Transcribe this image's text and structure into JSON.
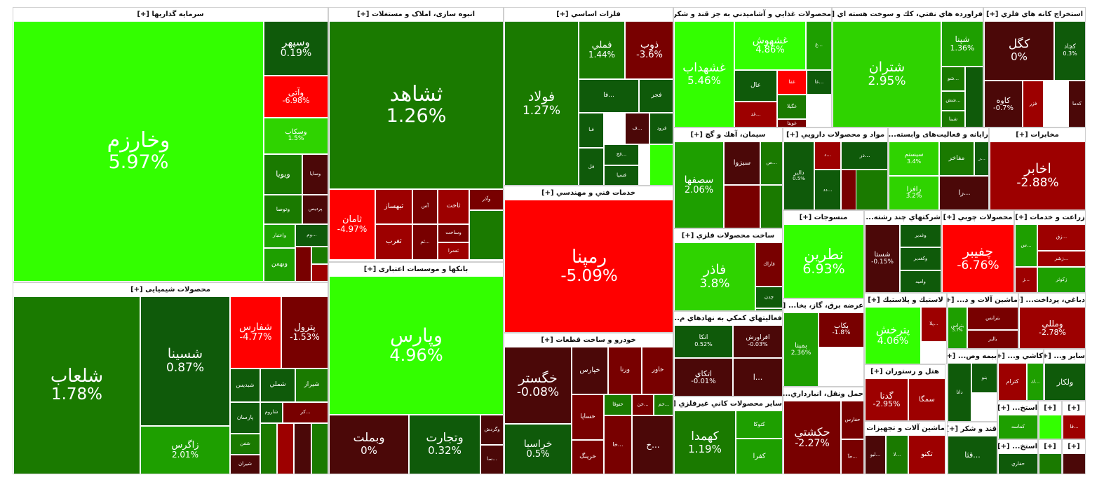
{
  "colors": {
    "up_max": "#33ff00",
    "up_strong": "#2fd300",
    "up_mid": "#1e9f00",
    "up_low": "#1a7a00",
    "flat_green": "#0f5a0a",
    "flat_red": "#4b0808",
    "down_low": "#780000",
    "down_mid": "#9d0000",
    "down_strong": "#c40000",
    "down_max": "#ff0000"
  },
  "sectors": [
    {
      "title": "سرمایه گذاریها [+]",
      "tiles": [
        {
          "symbol": "وخارزم",
          "pct": "5.97%",
          "color": "up_max"
        },
        {
          "symbol": "وسپهر",
          "pct": "0.19%",
          "color": "flat_green"
        },
        {
          "symbol": "وآتی",
          "pct": "-6.98%",
          "color": "down_max"
        },
        {
          "symbol": "وسکاب",
          "pct": "1.5%",
          "color": "up_strong"
        },
        {
          "symbol": "وسایا",
          "color": "flat_red"
        },
        {
          "symbol": "ویویا",
          "color": "up_low"
        },
        {
          "symbol": "پردیس",
          "color": "flat_red"
        },
        {
          "symbol": "وتوصا",
          "color": "up_low"
        },
        {
          "symbol": "وم...",
          "color": "flat_green"
        },
        {
          "symbol": "واعتبار",
          "color": "up_mid"
        },
        {
          "symbol": "وبهمن",
          "color": "up_mid"
        },
        {
          "symbol": "",
          "color": "down_low"
        },
        {
          "symbol": "",
          "color": "up_low"
        },
        {
          "symbol": "",
          "color": "down_mid"
        }
      ]
    },
    {
      "title": "محصولات شیمیایی [+]",
      "tiles": [
        {
          "symbol": "شلعاب",
          "pct": "1.78%",
          "color": "up_low"
        },
        {
          "symbol": "شسینا",
          "pct": "0.87%",
          "color": "flat_green"
        },
        {
          "symbol": "زاگرس",
          "pct": "2.01%",
          "color": "up_mid"
        },
        {
          "symbol": "شفارس",
          "pct": "-4.77%",
          "color": "down_max"
        },
        {
          "symbol": "پترول",
          "pct": "-1.53%",
          "color": "down_low"
        },
        {
          "symbol": "شیراز",
          "color": "up_low"
        },
        {
          "symbol": "شملي",
          "color": "flat_green"
        },
        {
          "symbol": "شبدیس",
          "color": "flat_green"
        },
        {
          "symbol": "شاروم",
          "color": "flat_green"
        },
        {
          "symbol": "کر...",
          "color": "down_low"
        },
        {
          "symbol": "پارسان",
          "color": "flat_green"
        },
        {
          "symbol": "شفن",
          "color": "up_low"
        },
        {
          "symbol": "شیران",
          "color": "flat_red"
        },
        {
          "symbol": "",
          "color": "up_low"
        },
        {
          "symbol": "",
          "color": "down_mid"
        },
        {
          "symbol": "",
          "color": "flat_red"
        },
        {
          "symbol": "",
          "color": "up_low"
        }
      ]
    },
    {
      "title": "انبوه سازی، املاک و مستغلات [+]",
      "tiles": [
        {
          "symbol": "ثشاهد",
          "pct": "1.26%",
          "color": "up_low"
        },
        {
          "symbol": "ثامان",
          "pct": "-4.97%",
          "color": "down_max"
        },
        {
          "symbol": "ثبهساز",
          "color": "down_mid"
        },
        {
          "symbol": "آس",
          "color": "down_low"
        },
        {
          "symbol": "ثاخت",
          "color": "down_mid"
        },
        {
          "symbol": "وآذر",
          "color": "down_low"
        },
        {
          "symbol": "ثغرب",
          "color": "down_mid"
        },
        {
          "symbol": "ثم...",
          "color": "down_low"
        },
        {
          "symbol": "وساخت",
          "color": "down_low"
        },
        {
          "symbol": "ثعمرا",
          "color": "down_mid"
        },
        {
          "symbol": "",
          "color": "up_low"
        }
      ]
    },
    {
      "title": "بانکها و موسسات اعتباری [+]",
      "tiles": [
        {
          "symbol": "وپارس",
          "pct": "4.96%",
          "color": "up_max"
        },
        {
          "symbol": "وبملت",
          "pct": "0%",
          "color": "flat_red"
        },
        {
          "symbol": "وتجارت",
          "pct": "0.32%",
          "color": "flat_green"
        },
        {
          "symbol": "وگردش",
          "color": "flat_red"
        },
        {
          "symbol": "سا...",
          "color": "flat_red"
        }
      ]
    },
    {
      "title": "فلزات اساسي [+]",
      "tiles": [
        {
          "symbol": "فولاد",
          "pct": "1.27%",
          "color": "up_low"
        },
        {
          "symbol": "فملي",
          "pct": "1.44%",
          "color": "up_low"
        },
        {
          "symbol": "ذوب",
          "pct": "-3.6%",
          "color": "down_low"
        },
        {
          "symbol": "فجر",
          "color": "flat_green"
        },
        {
          "symbol": "فا...",
          "color": "flat_green"
        },
        {
          "symbol": "ف...",
          "color": "flat_red"
        },
        {
          "symbol": "فرود",
          "color": "flat_green"
        },
        {
          "symbol": "فبا",
          "color": "flat_green"
        },
        {
          "symbol": "فخ...",
          "color": "flat_green"
        },
        {
          "symbol": "فسپا",
          "color": "flat_green"
        },
        {
          "symbol": "فل",
          "color": "flat_green"
        },
        {
          "symbol": "",
          "color": "up_max"
        }
      ]
    },
    {
      "title": "خدمات فني و مهندسي [+]",
      "tiles": [
        {
          "symbol": "رمپنا",
          "pct": "-5.09%",
          "color": "down_max"
        }
      ]
    },
    {
      "title": "خودرو و ساخت قطعات [+]",
      "tiles": [
        {
          "symbol": "خگستر",
          "pct": "-0.08%",
          "color": "flat_red"
        },
        {
          "symbol": "خراسیا",
          "pct": "0.5%",
          "color": "flat_green"
        },
        {
          "symbol": "خپارس",
          "color": "flat_red"
        },
        {
          "symbol": "ورنا",
          "color": "down_low"
        },
        {
          "symbol": "خاور",
          "color": "down_low"
        },
        {
          "symbol": "خساپا",
          "color": "down_low"
        },
        {
          "symbol": "ختوقا",
          "color": "up_low"
        },
        {
          "symbol": "خن...",
          "color": "down_low"
        },
        {
          "symbol": "خم...",
          "color": "up_low"
        },
        {
          "symbol": "خرینگ",
          "color": "down_low"
        },
        {
          "symbol": "خا...",
          "color": "down_low"
        },
        {
          "symbol": "خ...",
          "color": "flat_red"
        }
      ]
    },
    {
      "title": "محصولات غذايي و آشاميدني به جز قند و شکر [+]",
      "tiles": [
        {
          "symbol": "غشهداب",
          "pct": "5.46%",
          "color": "up_max"
        },
        {
          "symbol": "غشهوش",
          "pct": "4.86%",
          "color": "up_max"
        },
        {
          "symbol": "غ...",
          "color": "up_mid"
        },
        {
          "symbol": "غفا",
          "color": "down_max"
        },
        {
          "symbol": "غا...",
          "color": "flat_green"
        },
        {
          "symbol": "عال",
          "color": "flat_green"
        },
        {
          "symbol": "غگیلا",
          "color": "up_low"
        },
        {
          "symbol": "غد...",
          "color": "down_mid"
        },
        {
          "symbol": "غویتا",
          "color": "down_low"
        }
      ]
    },
    {
      "title": "فراورده هاي نفتي، كك و سوخت هسته اي [+]",
      "tiles": [
        {
          "symbol": "شتران",
          "pct": "2.95%",
          "color": "up_strong"
        },
        {
          "symbol": "شپنا",
          "pct": "1.36%",
          "color": "up_mid"
        },
        {
          "symbol": "شو...",
          "color": "up_low"
        },
        {
          "symbol": "شش...",
          "color": "up_low"
        },
        {
          "symbol": "شبنا",
          "color": "up_low"
        },
        {
          "symbol": "",
          "color": "flat_green"
        }
      ]
    },
    {
      "title": "استخراج كانه هاي فلزي [+]",
      "tiles": [
        {
          "symbol": "كگل",
          "pct": "0%",
          "color": "flat_red"
        },
        {
          "symbol": "کچاد",
          "pct": "0.3%",
          "color": "flat_green"
        },
        {
          "symbol": "کدما",
          "color": "flat_red"
        },
        {
          "symbol": "فزر",
          "color": "down_mid"
        },
        {
          "symbol": "کاوه",
          "pct": "-0.7%",
          "color": "flat_red"
        }
      ]
    },
    {
      "title": "سيمان، آهك و گچ [+]",
      "tiles": [
        {
          "symbol": "سصفها",
          "pct": "2.06%",
          "color": "up_mid"
        },
        {
          "symbol": "سبزوا",
          "color": "flat_red"
        },
        {
          "symbol": "س...",
          "color": "up_low"
        },
        {
          "symbol": "",
          "color": "down_low"
        },
        {
          "symbol": "",
          "color": "up_low"
        }
      ]
    },
    {
      "title": "مواد و محصولات دارويي [+]",
      "tiles": [
        {
          "symbol": "دالبر",
          "pct": "0.5%",
          "color": "flat_green"
        },
        {
          "symbol": "د...",
          "color": "down_mid"
        },
        {
          "symbol": "در...",
          "color": "flat_green"
        },
        {
          "symbol": "دد...",
          "color": "flat_green"
        },
        {
          "symbol": "",
          "color": "down_low"
        },
        {
          "symbol": "",
          "color": "up_low"
        }
      ]
    },
    {
      "title": "رایانه و فعالیت‌های وابسته... [+]",
      "tiles": [
        {
          "symbol": "سیستم",
          "pct": "3.4%",
          "color": "up_strong"
        },
        {
          "symbol": "مفاخر",
          "color": "up_low"
        },
        {
          "symbol": "ر...",
          "color": "flat_green"
        },
        {
          "symbol": "پ...",
          "color": "flat_red"
        },
        {
          "symbol": "رافزا",
          "pct": "3.2%",
          "color": "up_strong"
        },
        {
          "symbol": "را...",
          "color": "flat_red"
        }
      ]
    },
    {
      "title": "مخابرات [+]",
      "tiles": [
        {
          "symbol": "اخابر",
          "pct": "-2.88%",
          "color": "down_mid"
        }
      ]
    },
    {
      "title": "ساخت محصولات فلزي [+]",
      "tiles": [
        {
          "symbol": "فاذر",
          "pct": "3.8%",
          "color": "up_strong"
        },
        {
          "symbol": "فاراك",
          "color": "down_low"
        },
        {
          "symbol": "چدن",
          "color": "flat_green"
        },
        {
          "symbol": "",
          "color": "up_low"
        }
      ]
    },
    {
      "title": "منسوجات [+]",
      "tiles": [
        {
          "symbol": "نطرين",
          "pct": "6.93%",
          "color": "up_max"
        }
      ]
    },
    {
      "title": "شرکتهاي چند رشته... [+]",
      "tiles": [
        {
          "symbol": "شستا",
          "pct": "-0.15%",
          "color": "flat_red"
        },
        {
          "symbol": "وغدير",
          "color": "flat_green"
        },
        {
          "symbol": "وکغدير",
          "color": "flat_green"
        },
        {
          "symbol": "وامید",
          "color": "flat_green"
        }
      ]
    },
    {
      "title": "محصولات چوبي [+]",
      "tiles": [
        {
          "symbol": "چفیبر",
          "pct": "-6.76%",
          "color": "down_max"
        }
      ]
    },
    {
      "title": "زراعت و خدمات [+]",
      "tiles": [
        {
          "symbol": "س...",
          "color": "up_mid"
        },
        {
          "symbol": "زق...",
          "color": "down_mid"
        },
        {
          "symbol": "زشر...",
          "color": "down_mid"
        },
        {
          "symbol": "ز...",
          "color": "down_mid"
        },
        {
          "symbol": "زکوثر",
          "color": "up_mid"
        }
      ]
    },
    {
      "title": "فعاليتهاي كمكي به نهادهاي م... [+]",
      "tiles": [
        {
          "symbol": "اتکا",
          "pct": "0.52%",
          "color": "flat_green"
        },
        {
          "symbol": "افراورش",
          "pct": "-0.03%",
          "color": "flat_red"
        },
        {
          "symbol": "اتکاي",
          "pct": "-0.01%",
          "color": "flat_red"
        },
        {
          "symbol": "بورس",
          "color": "flat_red"
        },
        {
          "symbol": "ا...",
          "color": "flat_red"
        }
      ]
    },
    {
      "title": "عرضه برق، گاز، بخا... [+]",
      "tiles": [
        {
          "symbol": "بمپنا",
          "pct": "2.36%",
          "color": "up_mid"
        },
        {
          "symbol": "بكاب",
          "pct": "-1.8%",
          "color": "down_low"
        }
      ]
    },
    {
      "title": "لاستيك و پلاستيك [+]",
      "tiles": [
        {
          "symbol": "پترخش",
          "pct": "4.06%",
          "color": "up_max"
        },
        {
          "symbol": "پلا...",
          "color": "down_mid"
        }
      ]
    },
    {
      "title": "ماشين آلات و د... [+]",
      "tiles": [
        {
          "symbol": "بتراس",
          "pct": "3.7%",
          "color": "up_mid"
        },
        {
          "symbol": "بترانس",
          "color": "down_low"
        },
        {
          "symbol": "بالبر",
          "color": "down_low"
        }
      ]
    },
    {
      "title": "دباغي، پرداخت... [+]",
      "tiles": [
        {
          "symbol": "ومللي",
          "pct": "-2.78%",
          "color": "down_mid"
        }
      ]
    },
    {
      "title": "ساير محصولات كاني غيرفلزي [+]",
      "tiles": [
        {
          "symbol": "كهمدا",
          "pct": "1.19%",
          "color": "up_low"
        },
        {
          "symbol": "كتوكا",
          "color": "up_mid"
        },
        {
          "symbol": "كفرا",
          "color": "up_mid"
        }
      ]
    },
    {
      "title": "حمل ونقل، انبارداري... [+]",
      "tiles": [
        {
          "symbol": "حكشتي",
          "pct": "-2.27%",
          "color": "down_low"
        },
        {
          "symbol": "حفارس",
          "color": "down_low"
        },
        {
          "symbol": "حآ...",
          "color": "down_low"
        }
      ]
    },
    {
      "title": "هتل و رستوران [+]",
      "tiles": [
        {
          "symbol": "گدنا",
          "pct": "-2.95%",
          "color": "down_mid"
        },
        {
          "symbol": "سمگا",
          "color": "down_mid"
        }
      ]
    },
    {
      "title": "ماشين آلات و تجهيزات [+]",
      "tiles": [
        {
          "symbol": "تكنو",
          "color": "down_mid"
        },
        {
          "symbol": "لا...",
          "color": "up_low"
        },
        {
          "symbol": "لبو...",
          "color": "flat_red"
        }
      ]
    },
    {
      "title": "بيمه وص... [+]",
      "tiles": [
        {
          "symbol": "دانا",
          "color": "flat_green"
        },
        {
          "symbol": "بنو",
          "color": "flat_green"
        }
      ]
    },
    {
      "title": "قند و شکر [+]",
      "tiles": [
        {
          "symbol": "قثا...",
          "color": "flat_green"
        }
      ]
    },
    {
      "title": "کاشي و... [+]",
      "tiles": [
        {
          "symbol": "كترام",
          "color": "down_mid"
        },
        {
          "symbol": "ك...",
          "color": "up_mid"
        }
      ]
    },
    {
      "title": "ساير و... [+]",
      "tiles": [
        {
          "symbol": "ولكار",
          "color": "flat_green"
        },
        {
          "symbol": "ول...",
          "color": "flat_green"
        }
      ]
    },
    {
      "title": "استخ... [+]",
      "tiles": [
        {
          "symbol": "كماسه",
          "color": "up_mid"
        }
      ]
    },
    {
      "title": "استخ... [+]",
      "tiles": [
        {
          "symbol": "حفاري",
          "color": "flat_green"
        }
      ]
    },
    {
      "title": "[+]",
      "tiles": [
        {
          "symbol": "",
          "color": "up_max"
        }
      ]
    },
    {
      "title": "[+]",
      "tiles": [
        {
          "symbol": "قا...",
          "color": "down_mid"
        }
      ]
    },
    {
      "title": "[+]",
      "tiles": [
        {
          "symbol": "",
          "color": "up_low"
        }
      ]
    },
    {
      "title": "[+]",
      "tiles": [
        {
          "symbol": "",
          "color": "flat_red"
        }
      ]
    }
  ]
}
